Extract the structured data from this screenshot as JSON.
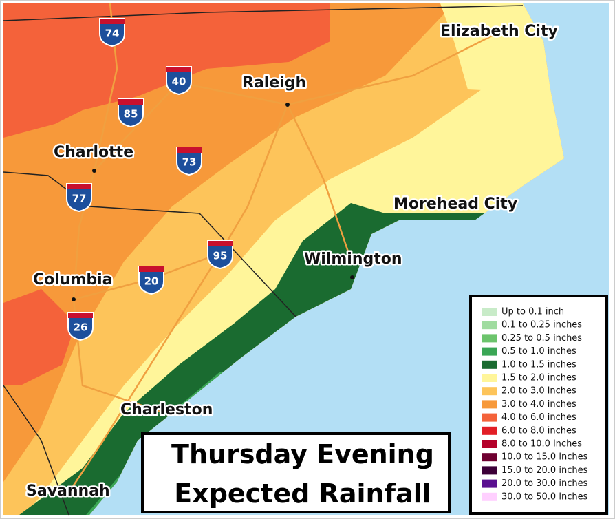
{
  "cities": [
    {
      "label": "Elizabeth City"
    },
    {
      "label": "Raleigh"
    },
    {
      "label": "Charlotte"
    },
    {
      "label": "Columbia"
    },
    {
      "label": "Wilmington"
    },
    {
      "label": "Morehead City"
    },
    {
      "label": "Charleston"
    },
    {
      "label": "Savannah"
    }
  ],
  "interstates": [
    "74",
    "40",
    "85",
    "73",
    "77",
    "95",
    "20",
    "26"
  ],
  "legend": {
    "items": [
      {
        "label": "Up to 0.1 inch",
        "color": "#c8ebc8"
      },
      {
        "label": "0.1 to 0.25 inches",
        "color": "#a0dca0"
      },
      {
        "label": "0.25 to 0.5 inches",
        "color": "#6cc46c"
      },
      {
        "label": "0.5 to 1.0 inches",
        "color": "#3aa655"
      },
      {
        "label": "1.0 to 1.5 inches",
        "color": "#1a6b30"
      },
      {
        "label": "1.5 to 2.0 inches",
        "color": "#fff59a"
      },
      {
        "label": "2.0 to 3.0 inches",
        "color": "#fdc45a"
      },
      {
        "label": "3.0 to 4.0 inches",
        "color": "#f7993a"
      },
      {
        "label": "4.0 to 6.0 inches",
        "color": "#f4623a"
      },
      {
        "label": "6.0 to 8.0 inches",
        "color": "#e21e26"
      },
      {
        "label": "8.0 to 10.0 inches",
        "color": "#b4002a"
      },
      {
        "label": "10.0 to 15.0 inches",
        "color": "#6e0030"
      },
      {
        "label": "15.0 to 20.0 inches",
        "color": "#3c0038"
      },
      {
        "label": "20.0 to 30.0 inches",
        "color": "#5a1090"
      },
      {
        "label": "30.0 to 50.0 inches",
        "color": "#ffd0ff"
      }
    ]
  },
  "title": {
    "line1": "Thursday Evening",
    "line2": "Expected Rainfall"
  }
}
